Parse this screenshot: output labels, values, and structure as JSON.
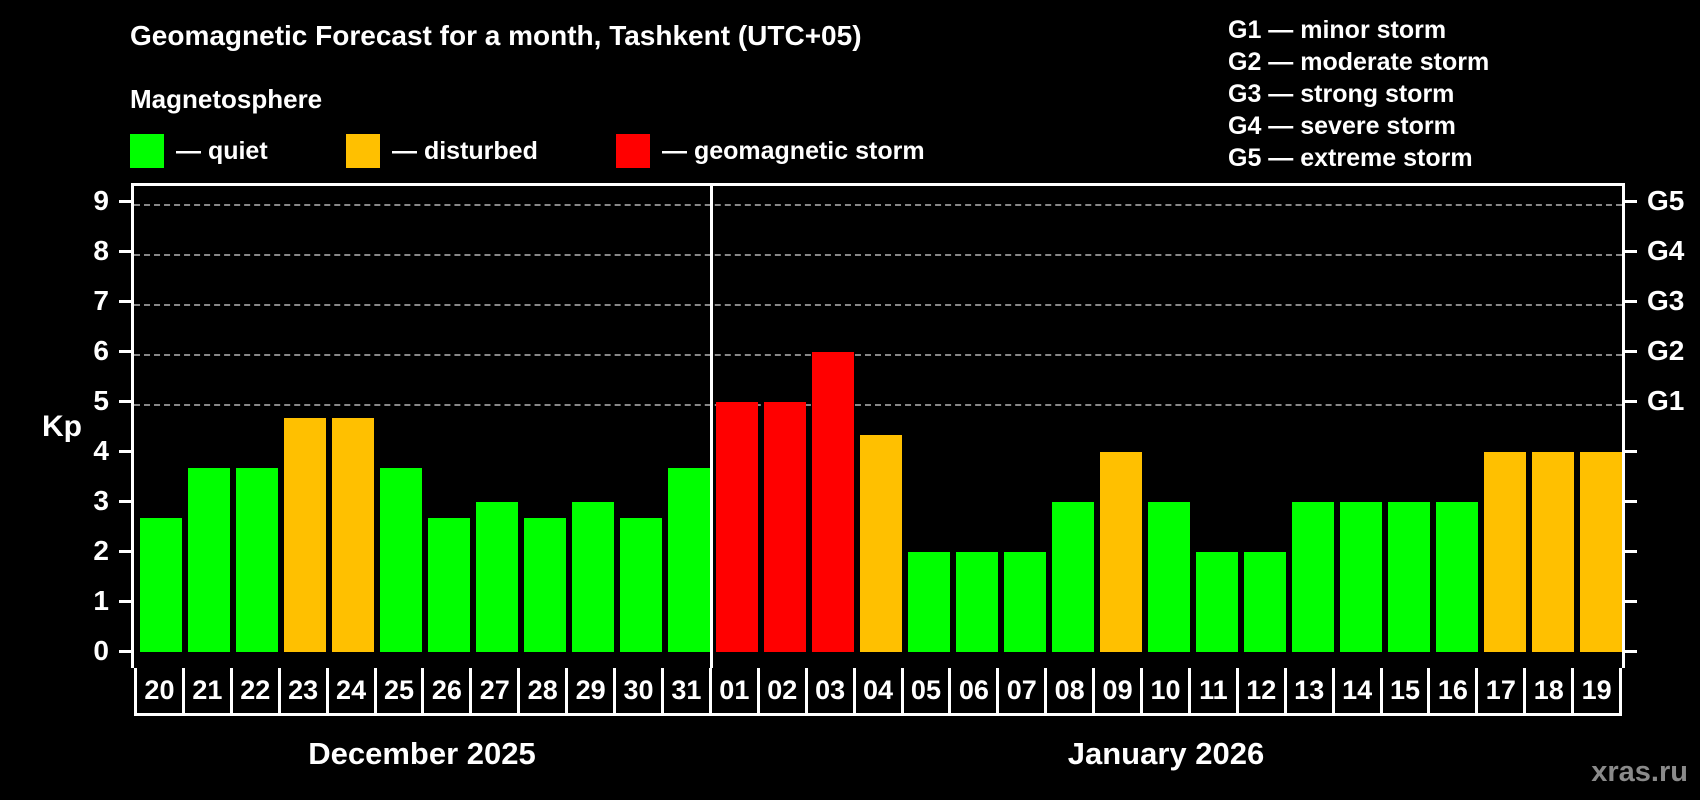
{
  "title": "Geomagnetic Forecast for a month, Tashkent (UTC+05)",
  "legend": {
    "heading": "Magnetosphere",
    "items": [
      {
        "label": "— quiet",
        "color": "#00ff00"
      },
      {
        "label": "— disturbed",
        "color": "#ffc000"
      },
      {
        "label": "— geomagnetic storm",
        "color": "#ff0000"
      }
    ]
  },
  "storm_scale": [
    "G1 — minor storm",
    "G2 — moderate storm",
    "G3 — strong storm",
    "G4 — severe storm",
    "G5 — extreme storm"
  ],
  "y_axis": {
    "label": "Kp",
    "ticks": [
      "0",
      "1",
      "2",
      "3",
      "4",
      "5",
      "6",
      "7",
      "8",
      "9"
    ]
  },
  "right_axis": {
    "labels": [
      "G1",
      "G2",
      "G3",
      "G4",
      "G5"
    ]
  },
  "months": [
    "December 2025",
    "January 2026"
  ],
  "credit": "xras.ru",
  "chart_data": {
    "type": "bar",
    "title": "Geomagnetic Forecast for a month, Tashkent (UTC+05)",
    "xlabel": "",
    "ylabel": "Kp",
    "ylim": [
      0,
      9
    ],
    "grid": "dashed horizontal at Kp 5–9",
    "categories": [
      "20",
      "21",
      "22",
      "23",
      "24",
      "25",
      "26",
      "27",
      "28",
      "29",
      "30",
      "31",
      "01",
      "02",
      "03",
      "04",
      "05",
      "06",
      "07",
      "08",
      "09",
      "10",
      "11",
      "12",
      "13",
      "14",
      "15",
      "16",
      "17",
      "18",
      "19"
    ],
    "month_groups": [
      {
        "name": "December 2025",
        "start": 0,
        "end": 11
      },
      {
        "name": "January 2026",
        "start": 12,
        "end": 30
      }
    ],
    "values": [
      2.67,
      3.67,
      3.67,
      4.67,
      4.67,
      3.67,
      2.67,
      3,
      2.67,
      3,
      2.67,
      3.67,
      5,
      5,
      6,
      4.33,
      2,
      2,
      2,
      3,
      4,
      3,
      2,
      2,
      3,
      3,
      3,
      3,
      4,
      4,
      4
    ],
    "status": [
      "quiet",
      "quiet",
      "quiet",
      "disturbed",
      "disturbed",
      "quiet",
      "quiet",
      "quiet",
      "quiet",
      "quiet",
      "quiet",
      "quiet",
      "storm",
      "storm",
      "storm",
      "disturbed",
      "quiet",
      "quiet",
      "quiet",
      "quiet",
      "disturbed",
      "quiet",
      "quiet",
      "quiet",
      "quiet",
      "quiet",
      "quiet",
      "quiet",
      "disturbed",
      "disturbed",
      "disturbed"
    ],
    "colors": {
      "quiet": "#00ff00",
      "disturbed": "#ffc000",
      "storm": "#ff0000"
    },
    "right_axis_map": {
      "G1": 5,
      "G2": 6,
      "G3": 7,
      "G4": 8,
      "G5": 9
    }
  }
}
